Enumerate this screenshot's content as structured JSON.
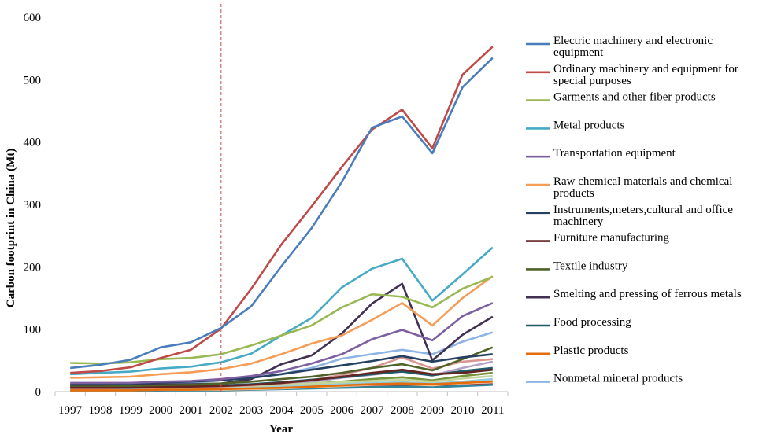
{
  "chart_data": {
    "type": "line",
    "title": "",
    "xlabel": "Year",
    "ylabel": "Carbon footprint in China (Mt)",
    "ylim": [
      0,
      600
    ],
    "yticks": [
      "0",
      "100",
      "200",
      "300",
      "400",
      "500",
      "600"
    ],
    "grid": false,
    "legend_position": "right",
    "reference_line_year": "2002",
    "categories": [
      "1997",
      "1998",
      "1999",
      "2000",
      "2001",
      "2002",
      "2003",
      "2004",
      "2005",
      "2006",
      "2007",
      "2008",
      "2009",
      "2010",
      "2011"
    ],
    "series": [
      {
        "name": "Electric machinery and electronic equipment",
        "color": "#4a7ebb",
        "values": [
          38,
          43,
          51,
          71,
          79,
          102,
          137,
          201,
          262,
          336,
          423,
          441,
          382,
          488,
          535
        ]
      },
      {
        "name": "Ordinary machinery and equipment for special purposes",
        "color": "#be4b48",
        "values": [
          30,
          33,
          39,
          54,
          67,
          101,
          165,
          236,
          297,
          360,
          420,
          452,
          390,
          508,
          553
        ]
      },
      {
        "name": "Garments and other fiber products",
        "color": "#98b954",
        "values": [
          46,
          45,
          47,
          52,
          54,
          60,
          74,
          90,
          106,
          135,
          156,
          152,
          135,
          165,
          184
        ]
      },
      {
        "name": "Metal products",
        "color": "#46aac5",
        "values": [
          28,
          30,
          32,
          37,
          40,
          47,
          61,
          90,
          118,
          167,
          197,
          213,
          146,
          188,
          231
        ]
      },
      {
        "name": "Transportation equipment",
        "color": "#7d60a0",
        "values": [
          14,
          14,
          14,
          16,
          17,
          20,
          25,
          33,
          45,
          60,
          84,
          99,
          82,
          121,
          142
        ]
      },
      {
        "name": "Raw chemical materials and chemical products",
        "color": "#f59d56",
        "values": [
          22,
          23,
          24,
          28,
          31,
          36,
          45,
          60,
          77,
          90,
          115,
          142,
          106,
          150,
          185
        ]
      },
      {
        "name": "Instruments,meters,cultural and office machinery",
        "color": "#254061",
        "values": [
          12,
          13,
          13,
          15,
          16,
          18,
          22,
          28,
          35,
          42,
          49,
          57,
          48,
          55,
          60
        ]
      },
      {
        "name": "Furniture manufacturing",
        "color": "#632523",
        "values": [
          6,
          6,
          6,
          7,
          8,
          9,
          11,
          14,
          18,
          24,
          30,
          35,
          28,
          30,
          35
        ]
      },
      {
        "name": "Textile industry",
        "color": "#4f6228",
        "values": [
          8,
          8,
          9,
          10,
          11,
          13,
          16,
          20,
          24,
          30,
          38,
          44,
          34,
          52,
          71
        ]
      },
      {
        "name": "Smelting and pressing of ferrous metals",
        "color": "#403152",
        "values": [
          10,
          10,
          11,
          12,
          12,
          13,
          20,
          44,
          58,
          93,
          141,
          173,
          50,
          91,
          120
        ]
      },
      {
        "name": "Food processing",
        "color": "#215968",
        "values": [
          7,
          7,
          8,
          8,
          9,
          10,
          12,
          15,
          19,
          23,
          28,
          32,
          26,
          33,
          38
        ]
      },
      {
        "name": "Plastic products",
        "color": "#e46c0a",
        "values": [
          2,
          2,
          2,
          3,
          3,
          4,
          5,
          6,
          8,
          10,
          12,
          13,
          12,
          14,
          16
        ]
      },
      {
        "name": "Nonmetal mineral products",
        "color": "#8eb4e3",
        "values": [
          10,
          10,
          10,
          12,
          14,
          18,
          22,
          28,
          38,
          53,
          60,
          67,
          60,
          80,
          95
        ]
      },
      {
        "name": "",
        "color": "#d99694",
        "values": [
          5,
          5,
          6,
          6,
          7,
          8,
          10,
          13,
          18,
          27,
          38,
          55,
          37,
          48,
          52
        ]
      },
      {
        "name": "",
        "color": "#c3d69b",
        "values": [
          6,
          6,
          6,
          7,
          7,
          8,
          9,
          11,
          13,
          15,
          17,
          19,
          16,
          21,
          25
        ]
      },
      {
        "name": "",
        "color": "#93cddd",
        "values": [
          3,
          3,
          3,
          4,
          4,
          5,
          6,
          8,
          10,
          12,
          14,
          15,
          13,
          16,
          20
        ]
      },
      {
        "name": "",
        "color": "#b3a2c7",
        "values": [
          4,
          4,
          5,
          5,
          6,
          7,
          9,
          12,
          16,
          22,
          27,
          33,
          26,
          38,
          48
        ]
      },
      {
        "name": "",
        "color": "#fac090",
        "values": [
          2,
          2,
          2,
          3,
          3,
          3,
          4,
          5,
          7,
          9,
          11,
          12,
          10,
          14,
          18
        ]
      },
      {
        "name": "",
        "color": "#77933c",
        "values": [
          4,
          4,
          4,
          5,
          5,
          6,
          8,
          10,
          13,
          16,
          20,
          23,
          18,
          25,
          30
        ]
      },
      {
        "name": "",
        "color": "#31859c",
        "values": [
          1,
          1,
          1,
          2,
          2,
          2,
          3,
          4,
          5,
          6,
          7,
          8,
          7,
          9,
          11
        ]
      },
      {
        "name": "",
        "color": "#953735",
        "values": [
          2,
          2,
          2,
          2,
          3,
          3,
          4,
          5,
          6,
          7,
          8,
          9,
          8,
          10,
          12
        ]
      }
    ]
  }
}
